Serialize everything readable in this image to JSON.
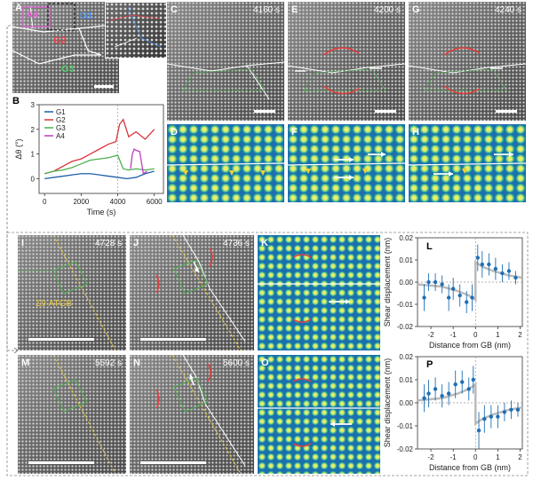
{
  "panels": {
    "a": {
      "letter": "A",
      "g1": "G1",
      "g2": "G2",
      "g3": "G3",
      "a4": "A4"
    },
    "b": {
      "letter": "B"
    },
    "c": {
      "letter": "C",
      "time": "4160 s"
    },
    "d": {
      "letter": "D"
    },
    "e": {
      "letter": "E",
      "time": "4200 s"
    },
    "f": {
      "letter": "F"
    },
    "g": {
      "letter": "G",
      "time": "4240 s"
    },
    "h": {
      "letter": "H"
    },
    "i": {
      "letter": "I",
      "time": "4728 s",
      "annotation": "Σ9 ATGB"
    },
    "j": {
      "letter": "J",
      "time": "4736 s"
    },
    "k": {
      "letter": "K"
    },
    "l": {
      "letter": "L"
    },
    "m": {
      "letter": "M",
      "time": "5592 s"
    },
    "n": {
      "letter": "N",
      "time": "5600 s"
    },
    "o": {
      "letter": "O"
    },
    "p": {
      "letter": "P"
    }
  },
  "chart_data": [
    {
      "id": "B",
      "type": "line",
      "xlabel": "Time (s)",
      "ylabel": "Δθ (°)",
      "xlim": [
        -300,
        6500
      ],
      "ylim": [
        -0.6,
        3.0
      ],
      "xticks": [
        0,
        2000,
        4000,
        6000
      ],
      "yticks": [
        0,
        1,
        2,
        3
      ],
      "legend": [
        "G1",
        "G2",
        "G3",
        "A4"
      ],
      "series": [
        {
          "name": "G1",
          "color": "#1f5fa8",
          "x": [
            0,
            500,
            1000,
            1500,
            2000,
            2500,
            3000,
            3500,
            4000,
            4500,
            5000,
            5500,
            6000
          ],
          "y": [
            0.0,
            0.05,
            0.1,
            0.15,
            0.2,
            0.2,
            0.15,
            0.1,
            0.05,
            0.0,
            0.05,
            0.2,
            0.3
          ]
        },
        {
          "name": "G2",
          "color": "#d8343a",
          "x": [
            0,
            500,
            1000,
            1500,
            2000,
            2500,
            3000,
            3500,
            3900,
            4100,
            4300,
            4600,
            5000,
            5500,
            6000
          ],
          "y": [
            0.2,
            0.3,
            0.5,
            0.7,
            0.8,
            1.0,
            1.2,
            1.4,
            1.5,
            2.2,
            2.4,
            1.7,
            1.9,
            1.6,
            2.0
          ]
        },
        {
          "name": "G3",
          "color": "#4caf50",
          "x": [
            0,
            500,
            1000,
            1500,
            2000,
            2500,
            3000,
            3500,
            4000,
            4300,
            4600,
            5000,
            5500,
            6000
          ],
          "y": [
            0.2,
            0.3,
            0.35,
            0.45,
            0.6,
            0.75,
            0.8,
            0.85,
            0.95,
            0.4,
            0.35,
            0.4,
            0.35,
            0.4
          ]
        },
        {
          "name": "A4",
          "color": "#c03cc0",
          "x": [
            4700,
            4800,
            4900,
            5000,
            5200,
            5400,
            5600
          ],
          "y": [
            0.4,
            1.0,
            1.2,
            1.15,
            1.1,
            0.2,
            0.3
          ]
        }
      ]
    },
    {
      "id": "L",
      "type": "scatter",
      "xlabel": "Distance from GB (nm)",
      "ylabel": "Shear displacement (nm)",
      "xlim": [
        -2.6,
        2.1
      ],
      "ylim": [
        -0.02,
        0.02
      ],
      "xticks": [
        -2,
        -1,
        0,
        1,
        2
      ],
      "yticks": [
        -0.02,
        -0.01,
        0.0,
        0.01,
        0.02
      ],
      "x": [
        -2.3,
        -2.1,
        -1.8,
        -1.5,
        -1.2,
        -1.0,
        -0.7,
        -0.4,
        -0.15,
        0.1,
        0.3,
        0.6,
        0.9,
        1.2,
        1.5,
        1.8
      ],
      "y": [
        -0.007,
        0.0,
        0.0,
        -0.001,
        -0.007,
        -0.003,
        -0.006,
        -0.009,
        -0.007,
        0.011,
        0.008,
        0.008,
        0.006,
        0.004,
        0.005,
        0.002
      ],
      "err": [
        0.006,
        0.004,
        0.004,
        0.004,
        0.006,
        0.005,
        0.005,
        0.005,
        0.006,
        0.006,
        0.006,
        0.005,
        0.005,
        0.004,
        0.004,
        0.003
      ],
      "fit_x": [
        -2.6,
        -1.5,
        -0.8,
        -0.3,
        0.0,
        0.0,
        0.3,
        0.8,
        1.5,
        2.1
      ],
      "fit_y": [
        -0.001,
        -0.002,
        -0.004,
        -0.006,
        -0.008,
        0.009,
        0.007,
        0.005,
        0.003,
        0.002
      ]
    },
    {
      "id": "P",
      "type": "scatter",
      "xlabel": "Distance from GB (nm)",
      "ylabel": "Shear displacement (nm)",
      "xlim": [
        -2.6,
        2.1
      ],
      "ylim": [
        -0.02,
        0.02
      ],
      "xticks": [
        -2,
        -1,
        0,
        1,
        2
      ],
      "yticks": [
        -0.02,
        -0.01,
        0.0,
        0.01,
        0.02
      ],
      "x": [
        -2.3,
        -2.1,
        -1.8,
        -1.5,
        -1.2,
        -0.9,
        -0.6,
        -0.3,
        -0.1,
        0.15,
        0.4,
        0.7,
        1.0,
        1.3,
        1.6,
        1.9
      ],
      "y": [
        0.002,
        0.004,
        0.006,
        0.003,
        0.004,
        0.008,
        0.009,
        0.006,
        0.01,
        -0.012,
        -0.007,
        -0.006,
        -0.006,
        -0.004,
        -0.003,
        -0.003
      ],
      "err": [
        0.006,
        0.006,
        0.005,
        0.005,
        0.005,
        0.006,
        0.005,
        0.005,
        0.006,
        0.008,
        0.006,
        0.005,
        0.005,
        0.004,
        0.004,
        0.003
      ],
      "fit_x": [
        -2.6,
        -1.5,
        -0.8,
        -0.3,
        0.0,
        0.0,
        0.3,
        0.8,
        1.5,
        2.1
      ],
      "fit_y": [
        0.001,
        0.002,
        0.004,
        0.006,
        0.008,
        -0.009,
        -0.007,
        -0.005,
        -0.003,
        -0.002
      ]
    }
  ]
}
